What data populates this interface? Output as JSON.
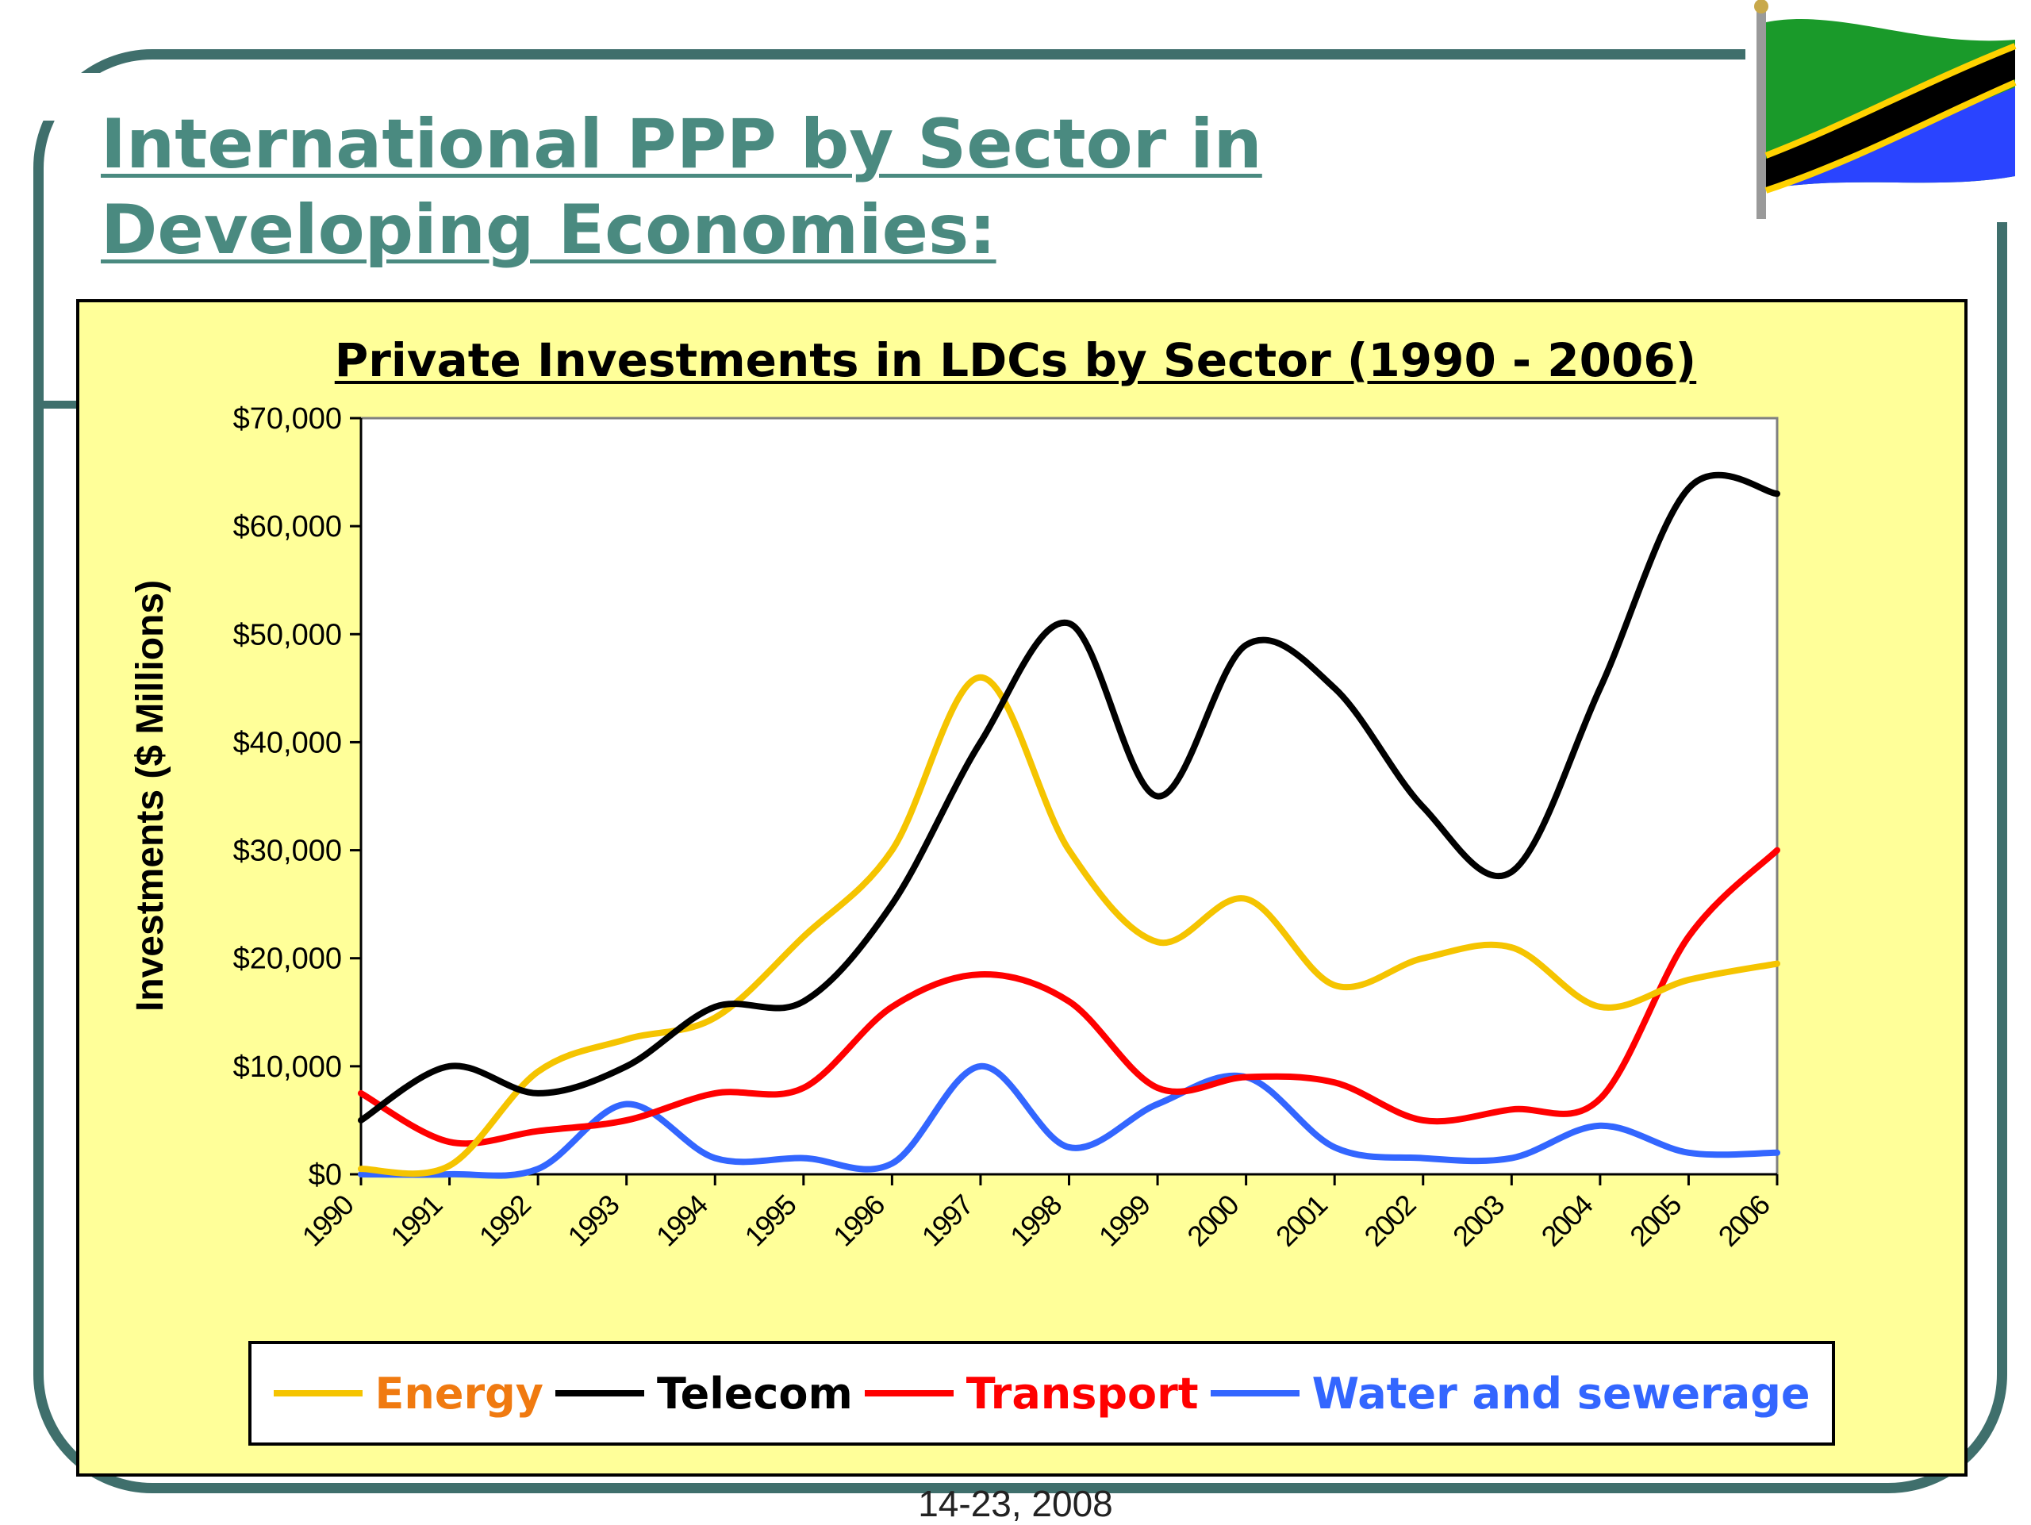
{
  "slide": {
    "title_line1": "International PPP by Sector in",
    "title_line2": "Developing Economies:",
    "footer_date": "14-23, 2008",
    "accent_color": "#3f6f6c",
    "title_color": "#4a8a80",
    "flag_icon": "tanzania-flag-icon"
  },
  "chart_data": {
    "type": "line",
    "title": "Private Investments in LDCs by Sector (1990 - 2006)",
    "xlabel": "",
    "ylabel": "Investments ($ Millions)",
    "categories": [
      "1990",
      "1991",
      "1992",
      "1993",
      "1994",
      "1995",
      "1996",
      "1997",
      "1998",
      "1999",
      "2000",
      "2001",
      "2002",
      "2003",
      "2004",
      "2005",
      "2006"
    ],
    "ylim": [
      0,
      70000
    ],
    "yticks": [
      0,
      10000,
      20000,
      30000,
      40000,
      50000,
      60000,
      70000
    ],
    "ytick_labels": [
      "$0",
      "$10,000",
      "$20,000",
      "$30,000",
      "$40,000",
      "$50,000",
      "$60,000",
      "$70,000"
    ],
    "plot_background": "#ffffff",
    "chart_background": "#ffff99",
    "grid": false,
    "legend_position": "bottom",
    "series": [
      {
        "name": "Energy",
        "color": "#f5c400",
        "label_color": "#f07a10",
        "values": [
          500,
          800,
          9500,
          12500,
          14500,
          22000,
          30000,
          46000,
          30000,
          21500,
          25500,
          17500,
          20000,
          21000,
          15500,
          18000,
          19500
        ]
      },
      {
        "name": "Telecom",
        "color": "#000000",
        "label_color": "#000000",
        "values": [
          5000,
          10000,
          7500,
          10000,
          15500,
          16000,
          25000,
          40000,
          51000,
          35000,
          49000,
          45000,
          34000,
          28000,
          45000,
          63500,
          63000
        ]
      },
      {
        "name": "Transport",
        "color": "#ff0000",
        "label_color": "#ff0000",
        "values": [
          7500,
          3000,
          4000,
          5000,
          7500,
          8000,
          15500,
          18500,
          16000,
          8000,
          9000,
          8500,
          5000,
          6000,
          7000,
          22000,
          30000
        ]
      },
      {
        "name": "Water and sewerage",
        "color": "#3366ff",
        "label_color": "#3366ff",
        "values": [
          0,
          0,
          500,
          6500,
          1500,
          1500,
          1000,
          10000,
          2500,
          6500,
          9000,
          2500,
          1500,
          1500,
          4500,
          2000,
          2000
        ]
      }
    ]
  }
}
